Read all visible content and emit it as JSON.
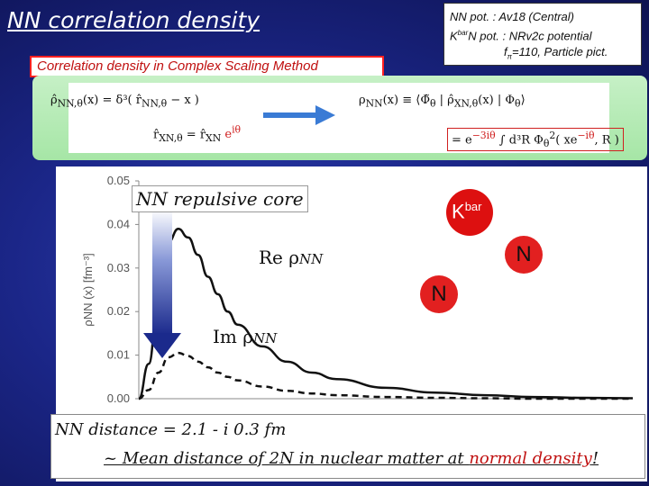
{
  "slide": {
    "title": "NN correlation density",
    "info": {
      "line1": "NN pot.   : Av18 (Central)",
      "line2_k": "K",
      "line2_sup": "bar",
      "line2_rest": "N pot. : NRv2c potential",
      "line3_f": "f",
      "line3_sub": "π",
      "line3_rest": "=110, Particle pict."
    },
    "method_label": "Correlation density in Complex Scaling Method",
    "formulas": {
      "left1_lhs": "ρ̂",
      "left1_sub": "NN,θ",
      "left1_rhs": "(x) = δ³( r̂",
      "left1_sub2": "NN,θ",
      "left1_end": " − x )",
      "left2_lhs": "r̂",
      "left2_sub": "XN,θ",
      "left2_eq": " = r̂",
      "left2_sub2": "XN",
      "left2_phase": " e",
      "left2_phase_sup": "iθ",
      "right1": "ρ",
      "right1_sub": "NN",
      "right1_rest": "(x) ≡ ⟨Φ̃",
      "right1_sub2": "θ",
      "right1_mid": " | ρ̂",
      "right1_sub3": "XN,θ",
      "right1_end": "(x) | Φ",
      "right1_sub4": "θ",
      "right1_close": "⟩",
      "right2_eq": "= e",
      "right2_sup": "−3iθ",
      "right2_rest": " ∫ d³R Φ",
      "right2_sub": "θ",
      "right2_sup2": "2",
      "right2_end": "( xe",
      "right2_sup3": "−iθ",
      "right2_close": ", R )"
    },
    "plot": {
      "y_axis_label": "ρNN (x) [fm⁻³]",
      "core_label": "NN repulsive core",
      "re_label": "Re ρ",
      "re_sub": "NN",
      "im_label": "Im ρ",
      "im_sub": "NN",
      "kbar_letter": "K",
      "kbar_sup": "bar",
      "n_right": "N",
      "n_left": "N"
    },
    "bottom": {
      "line1": "NN distance = 2.1 - i 0.3 fm",
      "line2_pre": "~ Mean distance of 2N in nuclear matter at ",
      "line2_highlight": "normal density",
      "line2_post": "!"
    }
  },
  "chart_data": {
    "type": "line",
    "title": "",
    "xlabel": "",
    "ylabel": "ρNN (x) [fm⁻³]",
    "ylim": [
      0,
      0.05
    ],
    "yticks": [
      "0.00",
      "0.01",
      "0.02",
      "0.03",
      "0.04",
      "0.05"
    ],
    "x": [
      0.0,
      0.2,
      0.4,
      0.6,
      0.8,
      1.0,
      1.2,
      1.4,
      1.6,
      1.8,
      2.0,
      2.5,
      3.0,
      3.5,
      4.0,
      5.0,
      6.0,
      7.0,
      8.0,
      9.0,
      10.0
    ],
    "series": [
      {
        "name": "Re ρNN",
        "style": "solid",
        "values": [
          0.0,
          0.008,
          0.024,
          0.036,
          0.039,
          0.037,
          0.033,
          0.028,
          0.024,
          0.02,
          0.017,
          0.012,
          0.0085,
          0.006,
          0.0045,
          0.0025,
          0.0014,
          0.0008,
          0.0004,
          0.0002,
          0.0001
        ]
      },
      {
        "name": "Im ρNN",
        "style": "dashed",
        "values": [
          0.0,
          0.002,
          0.006,
          0.0095,
          0.0105,
          0.0098,
          0.0085,
          0.0072,
          0.006,
          0.005,
          0.0042,
          0.0028,
          0.0018,
          0.0012,
          0.0008,
          0.0004,
          0.0002,
          0.0001,
          0.0,
          0.0,
          0.0
        ]
      }
    ],
    "grid": false,
    "colors": {
      "line": "#111111"
    }
  }
}
